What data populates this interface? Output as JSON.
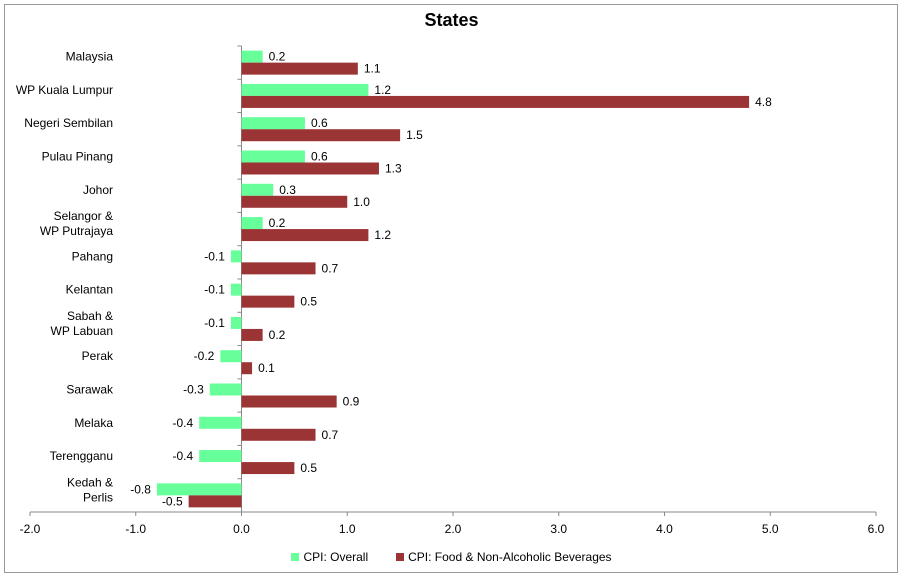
{
  "chart_data": {
    "type": "bar",
    "orientation": "horizontal",
    "title": "States",
    "xlabel": "",
    "ylabel": "",
    "xlim": [
      -2.0,
      6.0
    ],
    "xticks": [
      "-2.0",
      "-1.0",
      "0.0",
      "1.0",
      "2.0",
      "3.0",
      "4.0",
      "5.0",
      "6.0"
    ],
    "grid": false,
    "legend_position": "bottom",
    "categories": [
      "Malaysia",
      "WP Kuala Lumpur",
      "Negeri Sembilan",
      "Pulau Pinang",
      "Johor",
      "Selangor & WP Putrajaya",
      "Pahang",
      "Kelantan",
      "Sabah & WP Labuan",
      "Perak",
      "Sarawak",
      "Melaka",
      "Terengganu",
      "Kedah & Perlis"
    ],
    "series": [
      {
        "name": "CPI: Overall",
        "color": "#66ff99",
        "values": [
          0.2,
          1.2,
          0.6,
          0.6,
          0.3,
          0.2,
          -0.1,
          -0.1,
          -0.1,
          -0.2,
          -0.3,
          -0.4,
          -0.4,
          -0.8
        ],
        "labels": [
          "0.2",
          "1.2",
          "0.6",
          "0.6",
          "0.3",
          "0.2",
          "-0.1",
          "-0.1",
          "-0.1",
          "-0.2",
          "-0.3",
          "-0.4",
          "-0.4",
          "-0.8"
        ]
      },
      {
        "name": "CPI: Food & Non-Alcoholic Beverages",
        "color": "#9b3535",
        "values": [
          1.1,
          4.8,
          1.5,
          1.3,
          1.0,
          1.2,
          0.7,
          0.5,
          0.2,
          0.1,
          0.9,
          0.7,
          0.5,
          -0.5
        ],
        "labels": [
          "1.1",
          "4.8",
          "1.5",
          "1.3",
          "1.0",
          "1.2",
          "0.7",
          "0.5",
          "0.2",
          "0.1",
          "0.9",
          "0.7",
          "0.5",
          "-0.5"
        ]
      }
    ]
  }
}
